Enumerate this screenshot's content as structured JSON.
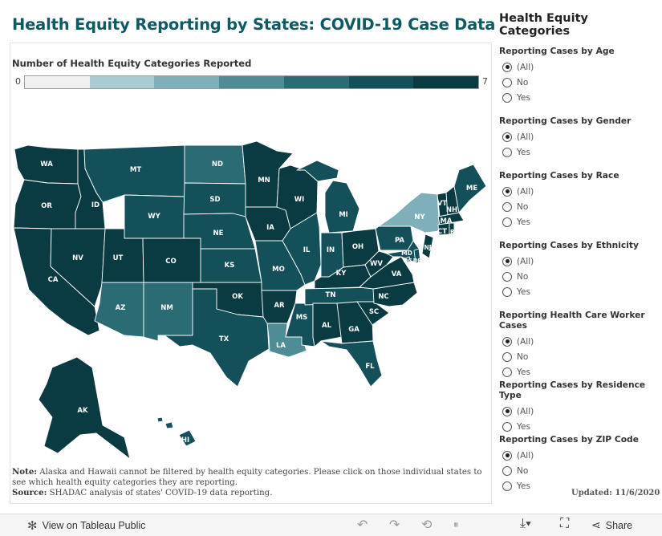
{
  "title": "Health Equity Reporting by States: COVID-19 Case Data",
  "legend": {
    "title": "Number of Health Equity Categories Reported",
    "min": "0",
    "max": "7",
    "colors": [
      "#f0f0f0",
      "#a9ccd3",
      "#7fb0b9",
      "#4e8d96",
      "#2b6b74",
      "#14505a",
      "#0a3a42"
    ]
  },
  "states": {
    "WA": {
      "label": "WA",
      "color": "#0a3a42"
    },
    "OR": {
      "label": "OR",
      "color": "#0a3a42"
    },
    "CA": {
      "label": "CA",
      "color": "#0a3a42"
    },
    "ID": {
      "label": "ID",
      "color": "#0a3a42"
    },
    "NV": {
      "label": "NV",
      "color": "#0a3a42"
    },
    "MT": {
      "label": "MT",
      "color": "#14505a"
    },
    "WY": {
      "label": "WY",
      "color": "#14505a"
    },
    "UT": {
      "label": "UT",
      "color": "#0a3a42"
    },
    "AZ": {
      "label": "AZ",
      "color": "#2b6b74"
    },
    "CO": {
      "label": "CO",
      "color": "#0a3a42"
    },
    "NM": {
      "label": "NM",
      "color": "#2b6b74"
    },
    "ND": {
      "label": "ND",
      "color": "#2b6b74"
    },
    "SD": {
      "label": "SD",
      "color": "#14505a"
    },
    "NE": {
      "label": "NE",
      "color": "#14505a"
    },
    "KS": {
      "label": "KS",
      "color": "#14505a"
    },
    "OK": {
      "label": "OK",
      "color": "#0a3a42"
    },
    "TX": {
      "label": "TX",
      "color": "#14505a"
    },
    "MN": {
      "label": "MN",
      "color": "#0a3a42"
    },
    "IA": {
      "label": "IA",
      "color": "#0a3a42"
    },
    "MO": {
      "label": "MO",
      "color": "#14505a"
    },
    "AR": {
      "label": "AR",
      "color": "#0a3a42"
    },
    "LA": {
      "label": "LA",
      "color": "#4e8d96"
    },
    "WI": {
      "label": "WI",
      "color": "#0a3a42"
    },
    "IL": {
      "label": "IL",
      "color": "#14505a"
    },
    "MS": {
      "label": "MS",
      "color": "#14505a"
    },
    "MI": {
      "label": "MI",
      "color": "#14505a"
    },
    "IN": {
      "label": "IN",
      "color": "#14505a"
    },
    "KY": {
      "label": "KY",
      "color": "#0a3a42"
    },
    "TN": {
      "label": "TN",
      "color": "#14505a"
    },
    "AL": {
      "label": "AL",
      "color": "#0a3a42"
    },
    "OH": {
      "label": "OH",
      "color": "#0a3a42"
    },
    "WV": {
      "label": "WV",
      "color": "#0a3a42"
    },
    "VA": {
      "label": "VA",
      "color": "#0a3a42"
    },
    "NC": {
      "label": "NC",
      "color": "#0a3a42"
    },
    "SC": {
      "label": "SC",
      "color": "#0a3a42"
    },
    "GA": {
      "label": "GA",
      "color": "#0a3a42"
    },
    "FL": {
      "label": "FL",
      "color": "#14505a"
    },
    "PA": {
      "label": "PA",
      "color": "#14505a"
    },
    "NY": {
      "label": "NY",
      "color": "#7fb0b9"
    },
    "ME": {
      "label": "ME",
      "color": "#14505a"
    },
    "VT": {
      "label": "VT",
      "color": "#0a3a42"
    },
    "NH": {
      "label": "NH",
      "color": "#0a3a42"
    },
    "MA": {
      "label": "MA",
      "color": "#0a3a42"
    },
    "CT": {
      "label": "CT",
      "color": "#0a3a42"
    },
    "RI": {
      "label": "RI",
      "color": "#0a3a42"
    },
    "NJ": {
      "label": "NJ",
      "color": "#0a3a42"
    },
    "MD": {
      "label": "MD",
      "color": "#14505a"
    },
    "DE": {
      "label": "DE",
      "color": "#14505a"
    },
    "DC": {
      "label": "DC",
      "color": "#14505a"
    },
    "AK": {
      "label": "AK",
      "color": "#0a3a42"
    },
    "HI": {
      "label": "HI",
      "color": "#14505a"
    }
  },
  "note": {
    "label": "Note:",
    "text": " Alaska and Hawaii cannot be filtered by health equity categories. Please click on those individual states to see which health equity categories they are reporting.",
    "source_label": "Source:",
    "source_text": " SHADAC analysis of states' COVID-19 data reporting."
  },
  "sidebar": {
    "title": "Health Equity Categories",
    "groups": [
      {
        "title": "Reporting Cases by Age",
        "options": [
          "(All)",
          "No",
          "Yes"
        ]
      },
      {
        "title": "Reporting Cases by Gender",
        "options": [
          "(All)",
          "Yes"
        ]
      },
      {
        "title": "Reporting Cases by Race",
        "options": [
          "(All)",
          "No",
          "Yes"
        ]
      },
      {
        "title": "Reporting Cases by Ethnicity",
        "options": [
          "(All)",
          "No",
          "Yes"
        ]
      },
      {
        "title": "Reporting Health Care Worker Cases",
        "options": [
          "(All)",
          "No",
          "Yes"
        ]
      },
      {
        "title": "Reporting Cases by Residence Type",
        "options": [
          "(All)",
          "Yes"
        ]
      },
      {
        "title": "Reporting Cases by ZIP Code",
        "options": [
          "(All)",
          "No",
          "Yes"
        ]
      }
    ]
  },
  "updated": "Updated:  11/6/2020",
  "toolbar": {
    "view_label": "View on Tableau Public",
    "share_label": "Share"
  }
}
